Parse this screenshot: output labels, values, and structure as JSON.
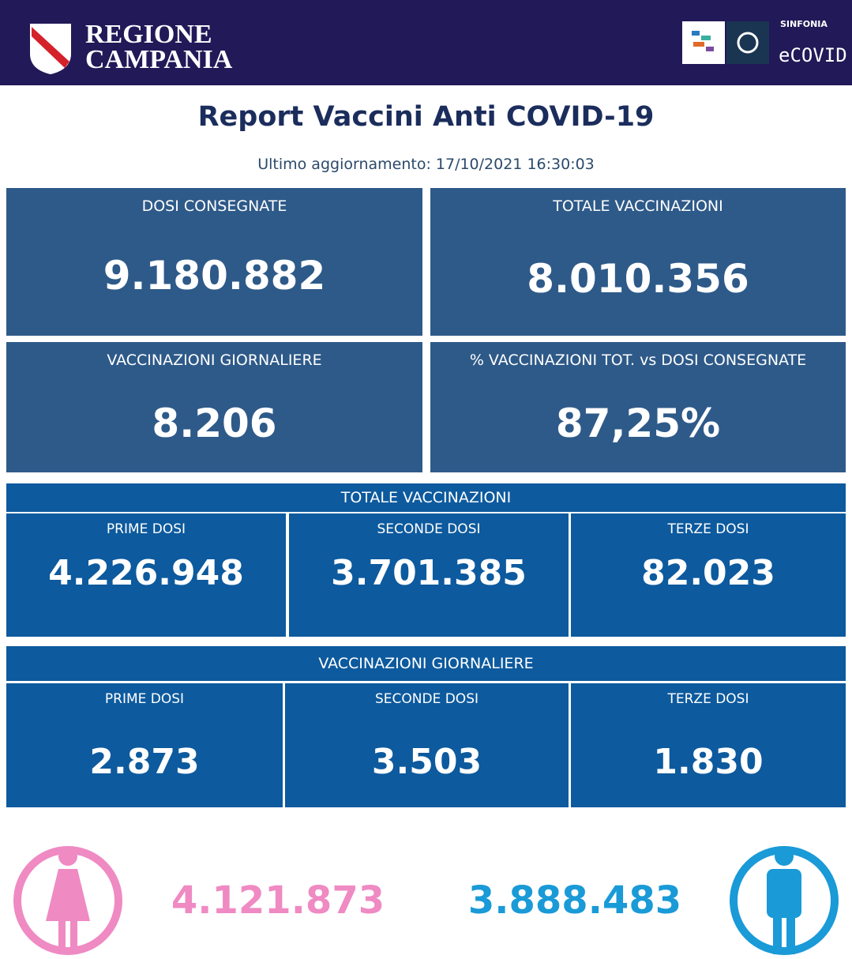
{
  "header": {
    "logo_line_1": "REGIONE",
    "logo_line_2": "CAMPANIA",
    "partner_label": "SINFONIA",
    "partner_name": "eCOVID"
  },
  "title": "Report Vaccini Anti COVID-19",
  "subtitle": "Ultimo aggiornamento: 17/10/2021  16:30:03",
  "cards": [
    {
      "label": "DOSI  CONSEGNATE",
      "value": "9.180.882"
    },
    {
      "label": "TOTALE VACCINAZIONI",
      "value": "8.010.356"
    },
    {
      "label": "VACCINAZIONI GIORNALIERE",
      "value": "8.206"
    },
    {
      "label": "% VACCINAZIONI TOT. vs DOSI CONSEGNATE",
      "value": "87,25%"
    }
  ],
  "sections": [
    {
      "title": "TOTALE VACCINAZIONI",
      "cells": [
        {
          "label": "PRIME DOSI",
          "value": "4.226.948"
        },
        {
          "label": "SECONDE DOSI",
          "value": "3.701.385"
        },
        {
          "label": "TERZE DOSI",
          "value": "82.023"
        }
      ]
    },
    {
      "title": "VACCINAZIONI GIORNALIERE",
      "cells": [
        {
          "label": "PRIME DOSI",
          "value": "2.873"
        },
        {
          "label": "SECONDE DOSI",
          "value": "3.503"
        },
        {
          "label": "TERZE DOSI",
          "value": "1.830"
        }
      ]
    }
  ],
  "gender": {
    "female": "4.121.873",
    "male": "3.888.483"
  }
}
